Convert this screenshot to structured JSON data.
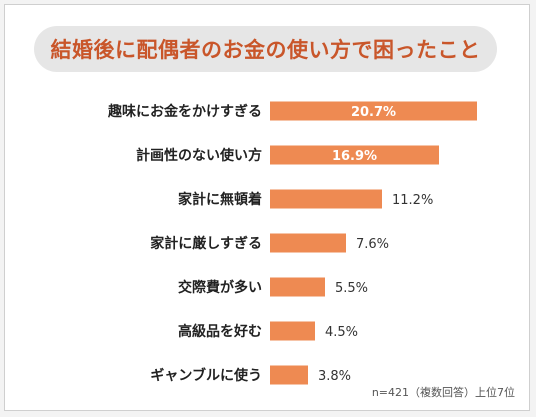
{
  "header": {
    "title": "結婚後に配偶者のお金の使い方で困ったこと"
  },
  "footnote": "n=421（複数回答）上位7位",
  "colors": {
    "bar": "#ee8a52",
    "title": "#c9562a",
    "pill": "#e6e6e6"
  },
  "chart_data": {
    "type": "bar",
    "orientation": "horizontal",
    "title": "結婚後に配偶者のお金の使い方で困ったこと",
    "categories": [
      "趣味にお金をかけすぎる",
      "計画性のない使い方",
      "家計に無頓着",
      "家計に厳しすぎる",
      "交際費が多い",
      "高級品を好む",
      "ギャンブルに使う"
    ],
    "values": [
      20.7,
      16.9,
      11.2,
      7.6,
      5.5,
      4.5,
      3.8
    ],
    "value_labels": [
      "20.7%",
      "16.9%",
      "11.2%",
      "7.6%",
      "5.5%",
      "4.5%",
      "3.8%"
    ],
    "unit": "%",
    "xlim": [
      0,
      25
    ],
    "grid": false,
    "legend": "none"
  }
}
